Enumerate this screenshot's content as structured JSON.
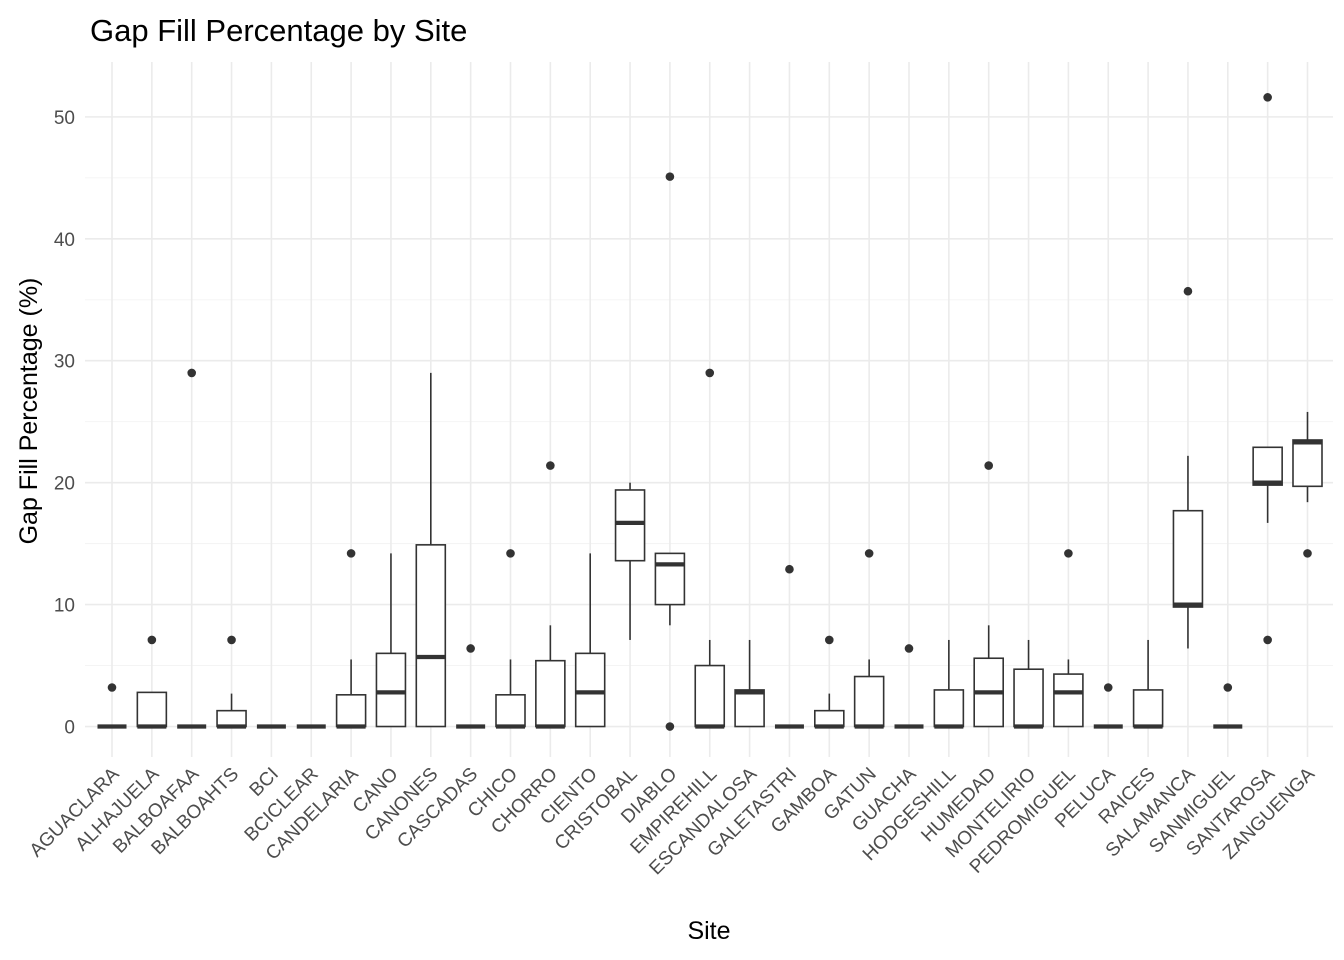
{
  "chart_data": {
    "type": "box",
    "title": "Gap Fill Percentage by Site",
    "xlabel": "Site",
    "ylabel": "Gap Fill Percentage (%)",
    "ylim": [
      -2.5,
      54.5
    ],
    "yticks": [
      0,
      10,
      20,
      30,
      40,
      50
    ],
    "grid": true,
    "categories": [
      "AGUACLARA",
      "ALHAJUELA",
      "BALBOAFAA",
      "BALBOAHTS",
      "BCI",
      "BCICLEAR",
      "CANDELARIA",
      "CANO",
      "CANONES",
      "CASCADAS",
      "CHICO",
      "CHORRO",
      "CIENTO",
      "CRISTOBAL",
      "DIABLO",
      "EMPIREHILL",
      "ESCANDALOSA",
      "GALETASTRI",
      "GAMBOA",
      "GATUN",
      "GUACHA",
      "HODGESHILL",
      "HUMEDAD",
      "MONTELIRIO",
      "PEDROMIGUEL",
      "PELUCA",
      "RAICES",
      "SALAMANCA",
      "SANMIGUEL",
      "SANTAROSA",
      "ZANGUENGA"
    ],
    "series": [
      {
        "q1": 0,
        "median": 0,
        "q3": 0,
        "whisker_low": 0,
        "whisker_high": 0,
        "outliers": [
          3.2
        ]
      },
      {
        "q1": 0,
        "median": 0,
        "q3": 2.8,
        "whisker_low": 0,
        "whisker_high": 2.8,
        "outliers": [
          7.1
        ]
      },
      {
        "q1": 0,
        "median": 0,
        "q3": 0,
        "whisker_low": 0,
        "whisker_high": 0,
        "outliers": [
          29.0
        ]
      },
      {
        "q1": 0,
        "median": 0,
        "q3": 1.3,
        "whisker_low": 0,
        "whisker_high": 2.7,
        "outliers": [
          7.1
        ]
      },
      {
        "q1": 0,
        "median": 0,
        "q3": 0,
        "whisker_low": 0,
        "whisker_high": 0,
        "outliers": []
      },
      {
        "q1": 0,
        "median": 0,
        "q3": 0,
        "whisker_low": 0,
        "whisker_high": 0,
        "outliers": []
      },
      {
        "q1": 0,
        "median": 0,
        "q3": 2.6,
        "whisker_low": 0,
        "whisker_high": 5.5,
        "outliers": [
          14.2
        ]
      },
      {
        "q1": 0,
        "median": 2.8,
        "q3": 6.0,
        "whisker_low": 0,
        "whisker_high": 14.2,
        "outliers": []
      },
      {
        "q1": 0,
        "median": 5.7,
        "q3": 14.9,
        "whisker_low": 0,
        "whisker_high": 29.0,
        "outliers": []
      },
      {
        "q1": 0,
        "median": 0,
        "q3": 0,
        "whisker_low": 0,
        "whisker_high": 0,
        "outliers": [
          6.4
        ]
      },
      {
        "q1": 0,
        "median": 0,
        "q3": 2.6,
        "whisker_low": 0,
        "whisker_high": 5.5,
        "outliers": [
          14.2
        ]
      },
      {
        "q1": 0,
        "median": 0,
        "q3": 5.4,
        "whisker_low": 0,
        "whisker_high": 8.3,
        "outliers": [
          21.4
        ]
      },
      {
        "q1": 0,
        "median": 2.8,
        "q3": 6.0,
        "whisker_low": 0,
        "whisker_high": 14.2,
        "outliers": []
      },
      {
        "q1": 13.6,
        "median": 16.7,
        "q3": 19.4,
        "whisker_low": 7.1,
        "whisker_high": 20.0,
        "outliers": []
      },
      {
        "q1": 10.0,
        "median": 13.3,
        "q3": 14.2,
        "whisker_low": 8.3,
        "whisker_high": 14.2,
        "outliers": [
          45.1,
          0
        ]
      },
      {
        "q1": 0,
        "median": 0,
        "q3": 5.0,
        "whisker_low": 0,
        "whisker_high": 7.1,
        "outliers": [
          29.0
        ]
      },
      {
        "q1": 0,
        "median": 2.8,
        "q3": 3.0,
        "whisker_low": 0,
        "whisker_high": 7.1,
        "outliers": []
      },
      {
        "q1": 0,
        "median": 0,
        "q3": 0,
        "whisker_low": 0,
        "whisker_high": 0,
        "outliers": [
          12.9
        ]
      },
      {
        "q1": 0,
        "median": 0,
        "q3": 1.3,
        "whisker_low": 0,
        "whisker_high": 2.7,
        "outliers": [
          7.1
        ]
      },
      {
        "q1": 0,
        "median": 0,
        "q3": 4.1,
        "whisker_low": 0,
        "whisker_high": 5.5,
        "outliers": [
          14.2
        ]
      },
      {
        "q1": 0,
        "median": 0,
        "q3": 0,
        "whisker_low": 0,
        "whisker_high": 0,
        "outliers": [
          6.4
        ]
      },
      {
        "q1": 0,
        "median": 0,
        "q3": 3.0,
        "whisker_low": 0,
        "whisker_high": 7.1,
        "outliers": []
      },
      {
        "q1": 0,
        "median": 2.8,
        "q3": 5.6,
        "whisker_low": 0,
        "whisker_high": 8.3,
        "outliers": [
          21.4
        ]
      },
      {
        "q1": 0,
        "median": 0,
        "q3": 4.7,
        "whisker_low": 0,
        "whisker_high": 7.1,
        "outliers": []
      },
      {
        "q1": 0,
        "median": 2.8,
        "q3": 4.3,
        "whisker_low": 0,
        "whisker_high": 5.5,
        "outliers": [
          14.2
        ]
      },
      {
        "q1": 0,
        "median": 0,
        "q3": 0,
        "whisker_low": 0,
        "whisker_high": 0,
        "outliers": [
          3.2
        ]
      },
      {
        "q1": 0,
        "median": 0,
        "q3": 3.0,
        "whisker_low": 0,
        "whisker_high": 7.1,
        "outliers": []
      },
      {
        "q1": 9.8,
        "median": 10.0,
        "q3": 17.7,
        "whisker_low": 6.4,
        "whisker_high": 22.2,
        "outliers": [
          35.7
        ]
      },
      {
        "q1": 0,
        "median": 0,
        "q3": 0,
        "whisker_low": 0,
        "whisker_high": 0,
        "outliers": [
          3.2
        ]
      },
      {
        "q1": 19.8,
        "median": 20.0,
        "q3": 22.9,
        "whisker_low": 16.7,
        "whisker_high": 22.9,
        "outliers": [
          51.6,
          7.1
        ]
      },
      {
        "q1": 19.7,
        "median": 23.3,
        "q3": 23.5,
        "whisker_low": 18.4,
        "whisker_high": 25.8,
        "outliers": [
          14.2
        ]
      }
    ]
  }
}
